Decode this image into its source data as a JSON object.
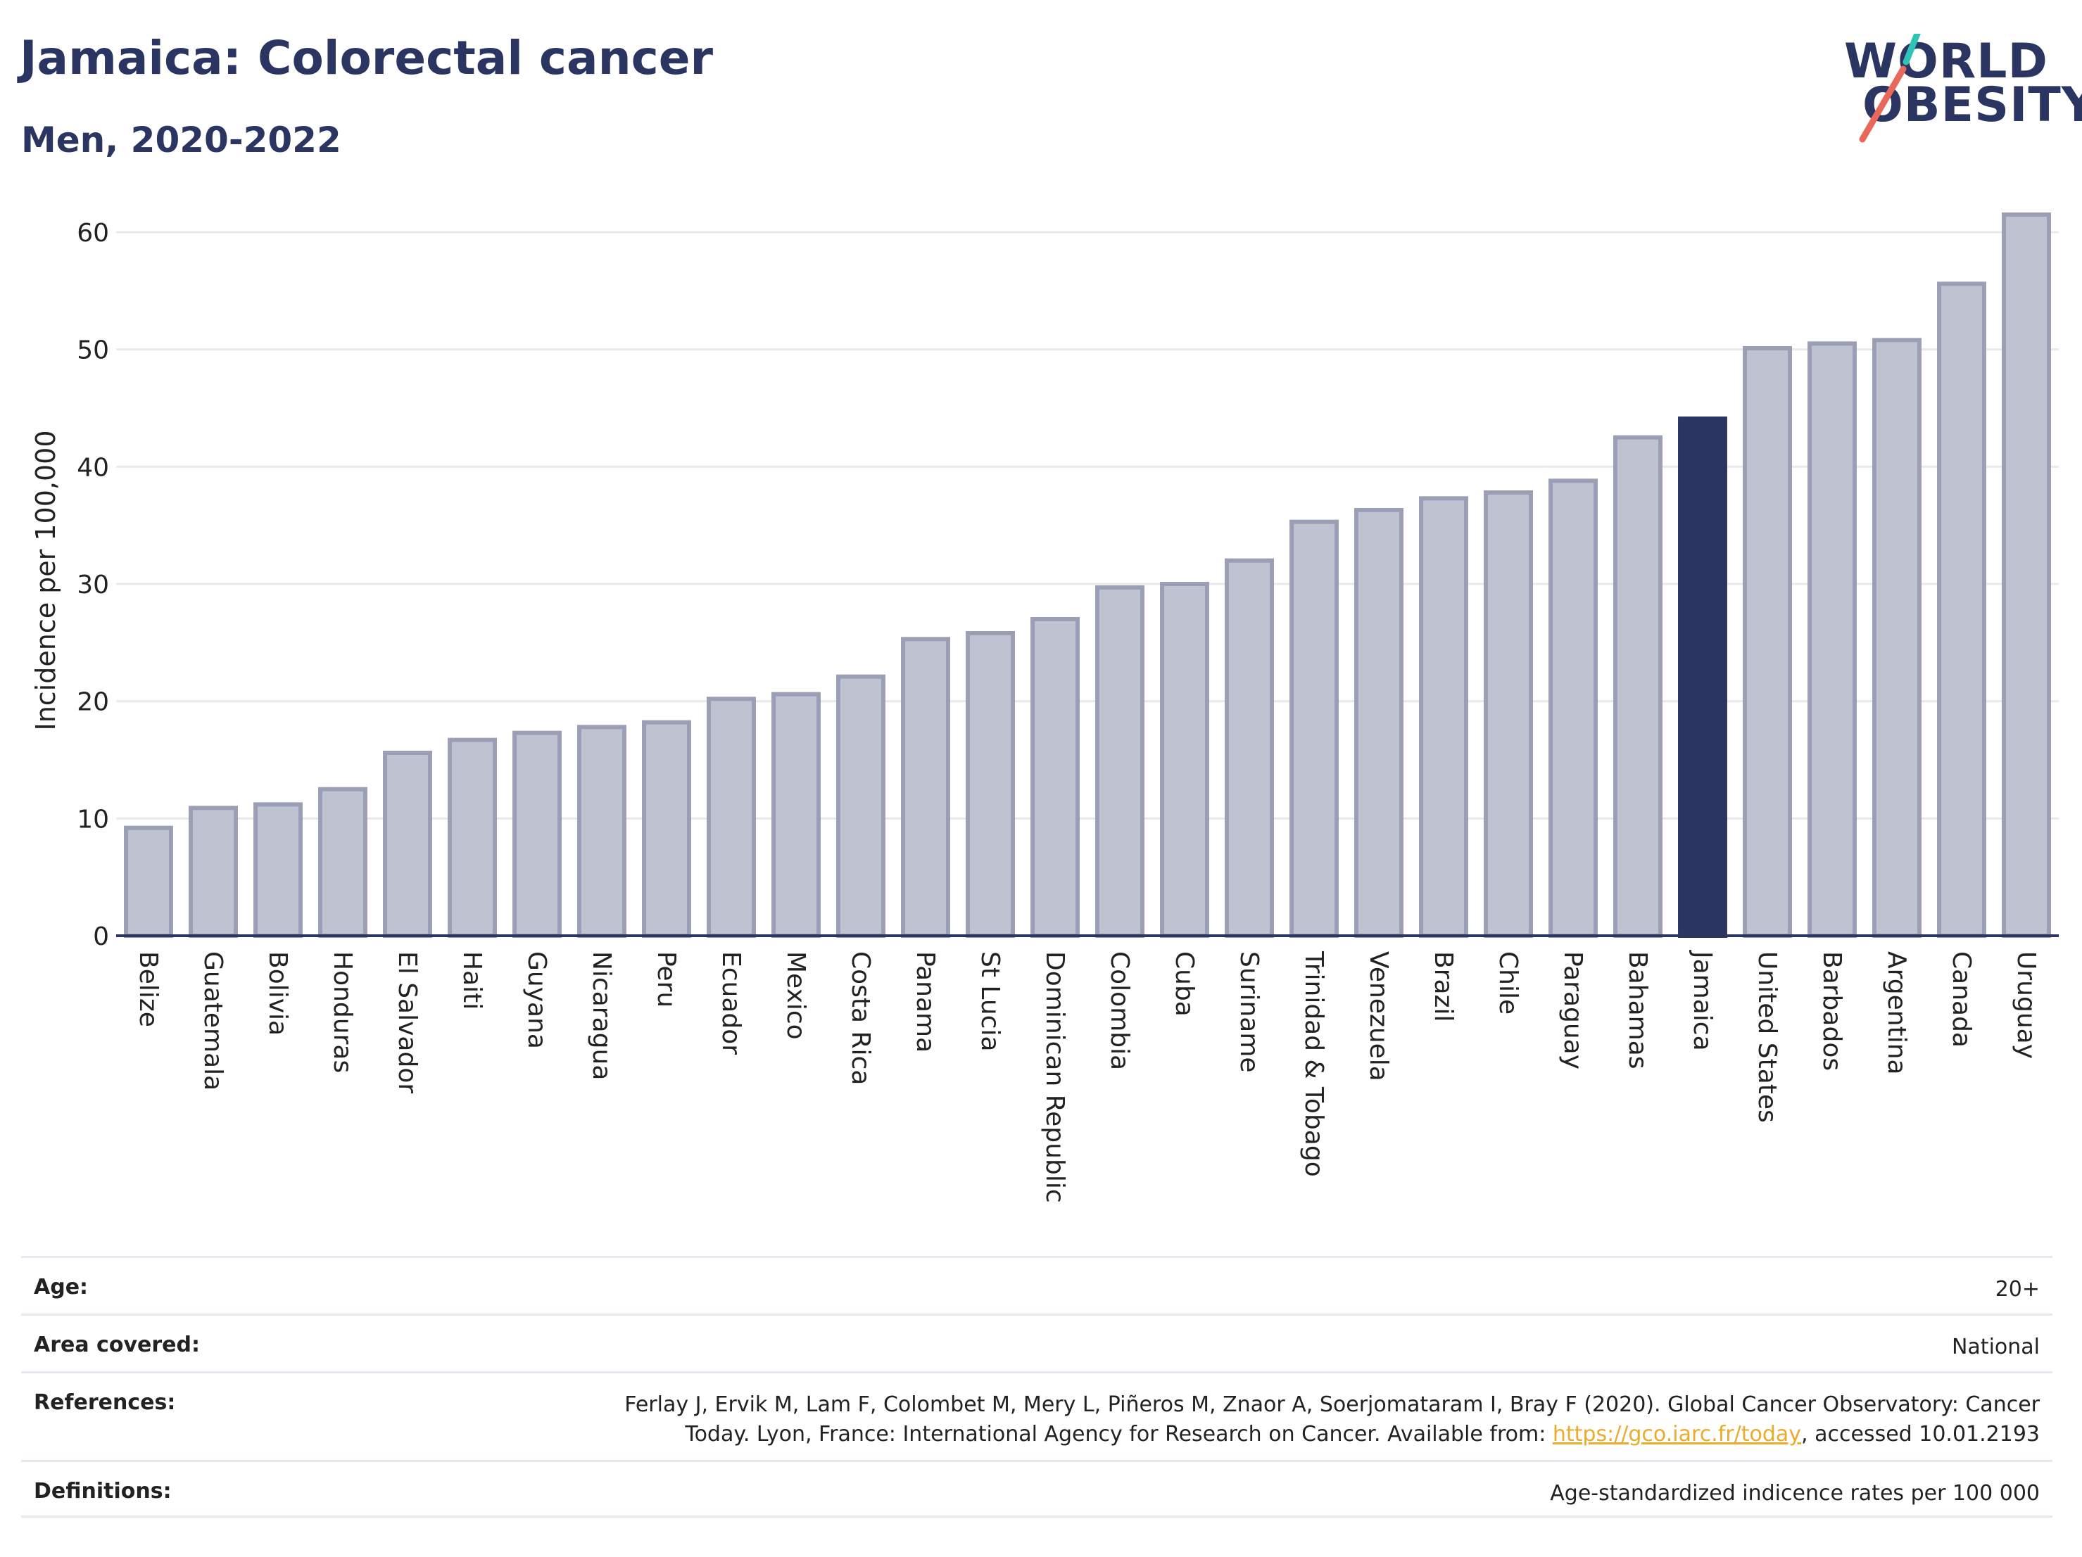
{
  "header": {
    "title": "Jamaica: Colorectal cancer",
    "subtitle": "Men, 2020-2022"
  },
  "logo": {
    "line1": "WORLD",
    "line2": "OBESITY",
    "colors": {
      "text": "#2b3561",
      "slash_top": "#2ec4b6",
      "slash_bottom": "#e8685a"
    }
  },
  "colors": {
    "bar_fill": "#bfc2d0",
    "bar_stroke": "#9a9fb6",
    "highlight_fill": "#2b3561",
    "grid": "#e8e8ee",
    "axis": "#2b3561"
  },
  "chart_data": {
    "type": "bar",
    "title": "",
    "xlabel": "",
    "ylabel": "Incidence per 100,000",
    "ylim": [
      0,
      63
    ],
    "yticks": [
      0,
      10,
      20,
      30,
      40,
      50,
      60
    ],
    "grid": true,
    "highlight": "Jamaica",
    "categories": [
      "Belize",
      "Guatemala",
      "Bolivia",
      "Honduras",
      "El Salvador",
      "Haiti",
      "Guyana",
      "Nicaragua",
      "Peru",
      "Ecuador",
      "Mexico",
      "Costa Rica",
      "Panama",
      "St Lucia",
      "Dominican Republic",
      "Colombia",
      "Cuba",
      "Suriname",
      "Trinidad & Tobago",
      "Venezuela",
      "Brazil",
      "Chile",
      "Paraguay",
      "Bahamas",
      "Jamaica",
      "United States",
      "Barbados",
      "Argentina",
      "Canada",
      "Uruguay"
    ],
    "values": [
      9.2,
      10.9,
      11.2,
      12.5,
      15.6,
      16.7,
      17.3,
      17.8,
      18.2,
      20.2,
      20.6,
      22.1,
      25.3,
      25.8,
      27.0,
      29.7,
      30.0,
      32.0,
      35.3,
      36.3,
      37.3,
      37.8,
      38.8,
      42.5,
      44.1,
      50.1,
      50.5,
      50.8,
      55.6,
      61.5
    ]
  },
  "meta": {
    "rows": [
      {
        "key": "Age:",
        "value": "20+"
      },
      {
        "key": "Area covered:",
        "value": "National"
      },
      {
        "key": "References:",
        "value_line1": "Ferlay J, Ervik M, Lam F, Colombet M, Mery L, Piñeros M, Znaor A, Soerjomataram I, Bray F (2020). Global Cancer Observatory: Cancer",
        "value_line2_pre": "Today. Lyon, France: International Agency for Research on Cancer. Available from: ",
        "value_link": "https://gco.iarc.fr/today",
        "value_line2_post": ", accessed 10.01.2193"
      },
      {
        "key": "Definitions:",
        "value": "Age-standardized indicence rates per 100 000"
      }
    ]
  }
}
